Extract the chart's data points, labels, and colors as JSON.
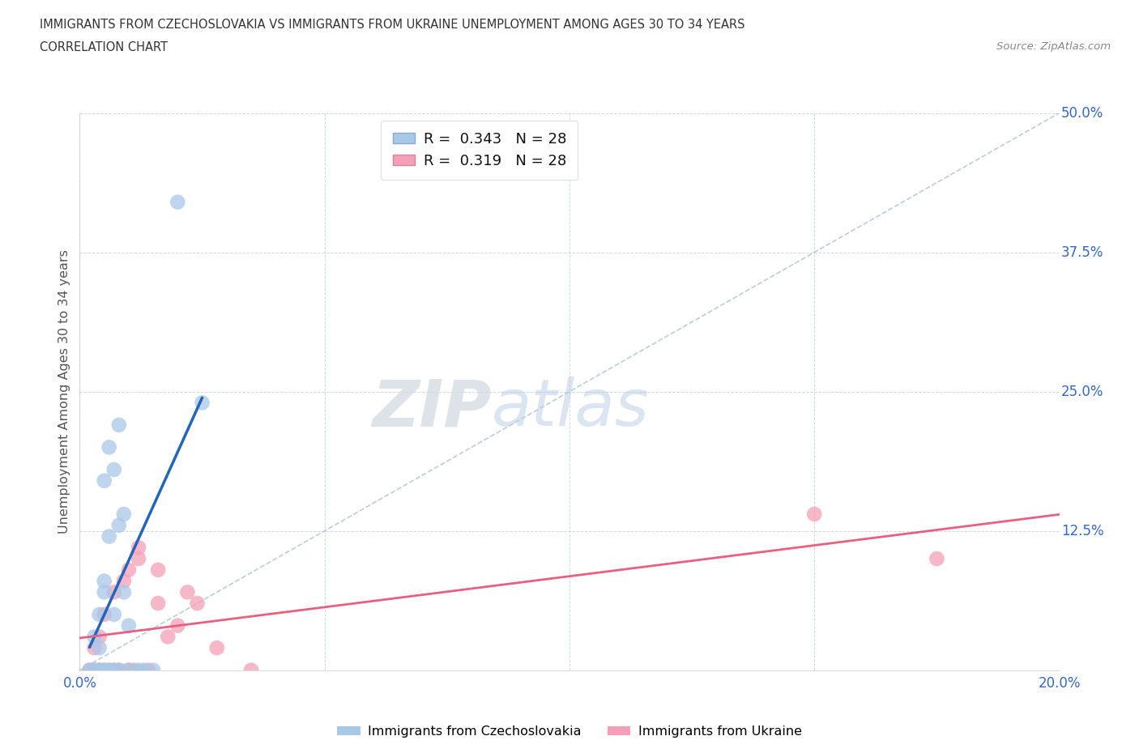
{
  "title_line1": "IMMIGRANTS FROM CZECHOSLOVAKIA VS IMMIGRANTS FROM UKRAINE UNEMPLOYMENT AMONG AGES 30 TO 34 YEARS",
  "title_line2": "CORRELATION CHART",
  "source": "Source: ZipAtlas.com",
  "ylabel": "Unemployment Among Ages 30 to 34 years",
  "xlim": [
    0.0,
    0.2
  ],
  "ylim": [
    0.0,
    0.5
  ],
  "czech_color": "#a8c8e8",
  "ukraine_color": "#f4a0b8",
  "czech_line_color": "#2266bb",
  "ukraine_line_color": "#e86080",
  "ref_line_color": "#aac0d8",
  "legend_R1": "0.343",
  "legend_N1": "28",
  "legend_R2": "0.319",
  "legend_N2": "28",
  "watermark_zip": "ZIP",
  "watermark_atlas": "atlas",
  "tick_color": "#3366cc",
  "label_color": "#555555",
  "czech_scatter_x": [
    0.002,
    0.003,
    0.003,
    0.004,
    0.004,
    0.004,
    0.005,
    0.005,
    0.005,
    0.005,
    0.006,
    0.006,
    0.006,
    0.007,
    0.007,
    0.007,
    0.008,
    0.008,
    0.008,
    0.009,
    0.009,
    0.01,
    0.01,
    0.012,
    0.013,
    0.015,
    0.02,
    0.025
  ],
  "czech_scatter_y": [
    0.0,
    0.0,
    0.03,
    0.0,
    0.02,
    0.05,
    0.0,
    0.07,
    0.08,
    0.17,
    0.0,
    0.12,
    0.2,
    0.0,
    0.05,
    0.18,
    0.0,
    0.13,
    0.22,
    0.14,
    0.07,
    0.0,
    0.04,
    0.0,
    0.0,
    0.0,
    0.42,
    0.24
  ],
  "ukraine_scatter_x": [
    0.002,
    0.003,
    0.003,
    0.004,
    0.004,
    0.005,
    0.005,
    0.006,
    0.007,
    0.007,
    0.008,
    0.009,
    0.01,
    0.01,
    0.011,
    0.012,
    0.012,
    0.014,
    0.016,
    0.016,
    0.018,
    0.02,
    0.022,
    0.024,
    0.028,
    0.035,
    0.15,
    0.175
  ],
  "ukraine_scatter_y": [
    0.0,
    0.0,
    0.02,
    0.0,
    0.03,
    0.0,
    0.05,
    0.0,
    0.0,
    0.07,
    0.0,
    0.08,
    0.0,
    0.09,
    0.0,
    0.1,
    0.11,
    0.0,
    0.06,
    0.09,
    0.03,
    0.04,
    0.07,
    0.06,
    0.02,
    0.0,
    0.14,
    0.1
  ]
}
